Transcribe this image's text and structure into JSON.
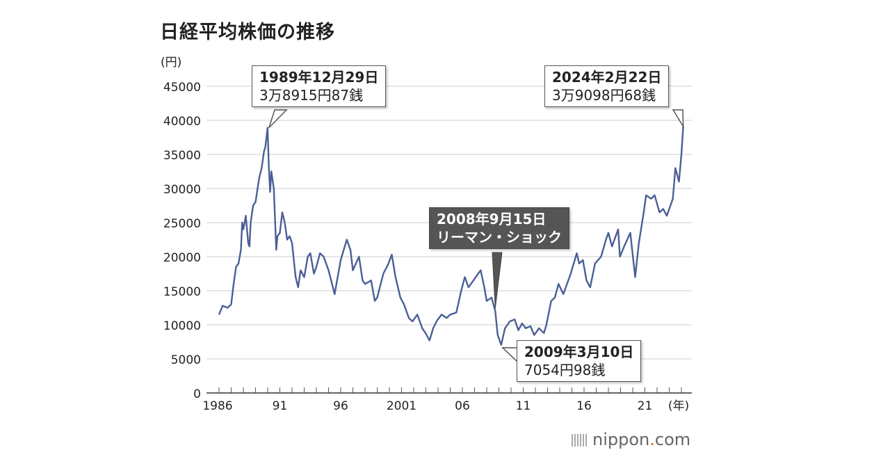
{
  "chart_data": {
    "type": "line",
    "title": "日経平均株価の推移",
    "ylabel": "(円)",
    "xlabel": "(年)",
    "ylim": [
      0,
      45000
    ],
    "yticks": [
      "0",
      "5000",
      "10000",
      "15000",
      "20000",
      "25000",
      "30000",
      "35000",
      "40000",
      "45000"
    ],
    "xticks": [
      {
        "year": 1986,
        "label": "1986"
      },
      {
        "year": 1991,
        "label": "91"
      },
      {
        "year": 1996,
        "label": "96"
      },
      {
        "year": 2001,
        "label": "2001"
      },
      {
        "year": 2006,
        "label": "06"
      },
      {
        "year": 2011,
        "label": "11"
      },
      {
        "year": 2016,
        "label": "16"
      },
      {
        "year": 2021,
        "label": "21"
      }
    ],
    "xlim": [
      1986,
      2024.5
    ],
    "grid": true,
    "line_color": "#4a5f96",
    "series": [
      {
        "points": [
          [
            1986.0,
            11500
          ],
          [
            1986.3,
            12800
          ],
          [
            1986.7,
            12500
          ],
          [
            1987.0,
            13000
          ],
          [
            1987.2,
            16000
          ],
          [
            1987.4,
            18500
          ],
          [
            1987.6,
            19000
          ],
          [
            1987.8,
            21000
          ],
          [
            1987.9,
            25000
          ],
          [
            1988.0,
            24000
          ],
          [
            1988.2,
            26000
          ],
          [
            1988.4,
            22000
          ],
          [
            1988.5,
            21500
          ],
          [
            1988.6,
            25000
          ],
          [
            1988.8,
            27500
          ],
          [
            1989.0,
            28000
          ],
          [
            1989.3,
            31500
          ],
          [
            1989.5,
            33000
          ],
          [
            1989.7,
            35500
          ],
          [
            1989.8,
            36000
          ],
          [
            1989.99,
            38916
          ],
          [
            1990.1,
            33000
          ],
          [
            1990.2,
            29500
          ],
          [
            1990.3,
            32500
          ],
          [
            1990.5,
            30000
          ],
          [
            1990.7,
            21000
          ],
          [
            1990.8,
            23000
          ],
          [
            1991.0,
            23500
          ],
          [
            1991.2,
            26500
          ],
          [
            1991.4,
            25000
          ],
          [
            1991.6,
            22500
          ],
          [
            1991.8,
            23000
          ],
          [
            1992.0,
            22000
          ],
          [
            1992.3,
            17000
          ],
          [
            1992.5,
            15500
          ],
          [
            1992.7,
            18000
          ],
          [
            1993.0,
            17000
          ],
          [
            1993.3,
            20000
          ],
          [
            1993.5,
            20500
          ],
          [
            1993.8,
            17500
          ],
          [
            1994.0,
            18500
          ],
          [
            1994.3,
            20500
          ],
          [
            1994.6,
            20000
          ],
          [
            1995.0,
            18000
          ],
          [
            1995.5,
            14500
          ],
          [
            1995.8,
            17500
          ],
          [
            1996.0,
            19500
          ],
          [
            1996.5,
            22500
          ],
          [
            1996.8,
            21000
          ],
          [
            1997.0,
            18000
          ],
          [
            1997.5,
            20000
          ],
          [
            1997.8,
            16500
          ],
          [
            1998.0,
            16000
          ],
          [
            1998.5,
            16500
          ],
          [
            1998.8,
            13500
          ],
          [
            1999.0,
            14000
          ],
          [
            1999.5,
            17500
          ],
          [
            1999.9,
            18900
          ],
          [
            2000.2,
            20300
          ],
          [
            2000.5,
            17000
          ],
          [
            2000.9,
            14000
          ],
          [
            2001.2,
            13000
          ],
          [
            2001.6,
            11000
          ],
          [
            2001.9,
            10500
          ],
          [
            2002.3,
            11500
          ],
          [
            2002.7,
            9500
          ],
          [
            2003.0,
            8700
          ],
          [
            2003.3,
            7700
          ],
          [
            2003.6,
            9500
          ],
          [
            2003.9,
            10600
          ],
          [
            2004.3,
            11500
          ],
          [
            2004.7,
            11000
          ],
          [
            2005.0,
            11500
          ],
          [
            2005.5,
            11800
          ],
          [
            2005.9,
            15000
          ],
          [
            2006.2,
            17000
          ],
          [
            2006.5,
            15500
          ],
          [
            2006.9,
            16500
          ],
          [
            2007.3,
            17500
          ],
          [
            2007.5,
            18000
          ],
          [
            2007.8,
            15500
          ],
          [
            2008.0,
            13500
          ],
          [
            2008.4,
            14000
          ],
          [
            2008.7,
            12000
          ],
          [
            2008.9,
            8500
          ],
          [
            2009.19,
            7055
          ],
          [
            2009.5,
            9500
          ],
          [
            2009.9,
            10500
          ],
          [
            2010.3,
            10800
          ],
          [
            2010.6,
            9200
          ],
          [
            2010.9,
            10200
          ],
          [
            2011.2,
            9500
          ],
          [
            2011.6,
            9800
          ],
          [
            2011.9,
            8500
          ],
          [
            2012.3,
            9500
          ],
          [
            2012.7,
            8800
          ],
          [
            2012.9,
            10000
          ],
          [
            2013.3,
            13500
          ],
          [
            2013.6,
            14000
          ],
          [
            2013.9,
            16000
          ],
          [
            2014.3,
            14500
          ],
          [
            2014.9,
            17500
          ],
          [
            2015.4,
            20500
          ],
          [
            2015.6,
            19000
          ],
          [
            2015.9,
            19500
          ],
          [
            2016.2,
            16500
          ],
          [
            2016.5,
            15500
          ],
          [
            2016.9,
            19000
          ],
          [
            2017.4,
            20000
          ],
          [
            2017.8,
            22500
          ],
          [
            2018.0,
            23500
          ],
          [
            2018.3,
            21500
          ],
          [
            2018.8,
            24000
          ],
          [
            2018.95,
            20000
          ],
          [
            2019.3,
            21500
          ],
          [
            2019.8,
            23500
          ],
          [
            2020.2,
            17000
          ],
          [
            2020.5,
            22000
          ],
          [
            2020.9,
            26500
          ],
          [
            2021.1,
            29000
          ],
          [
            2021.5,
            28500
          ],
          [
            2021.8,
            29000
          ],
          [
            2022.2,
            26500
          ],
          [
            2022.5,
            27000
          ],
          [
            2022.8,
            26000
          ],
          [
            2023.0,
            27000
          ],
          [
            2023.3,
            28500
          ],
          [
            2023.5,
            33000
          ],
          [
            2023.8,
            31000
          ],
          [
            2024.0,
            35000
          ],
          [
            2024.15,
            39099
          ]
        ]
      }
    ],
    "annotations": [
      {
        "date": "1989年12月29日",
        "value": "3万8915円87銭",
        "style": "light"
      },
      {
        "date": "2008年9月15日",
        "value": "リーマン・ショック",
        "style": "dark"
      },
      {
        "date": "2009年3月10日",
        "value": "7054円98銭",
        "style": "light"
      },
      {
        "date": "2024年2月22日",
        "value": "3万9098円68銭",
        "style": "light"
      }
    ]
  },
  "brand": {
    "name": "nippon",
    "dot": ".",
    "suffix": "com"
  }
}
